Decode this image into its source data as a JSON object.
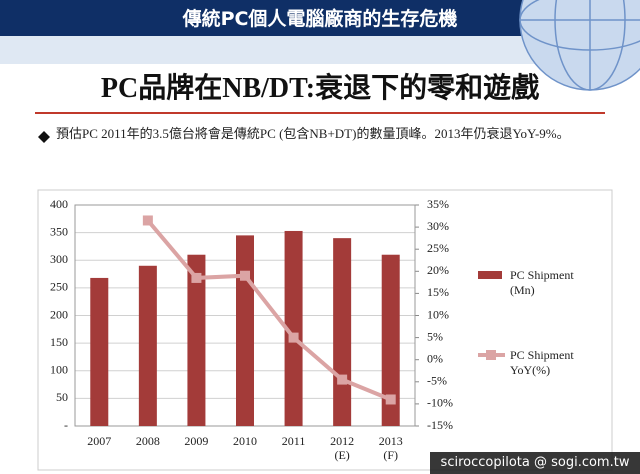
{
  "header": {
    "title": "傳統PC個人電腦廠商的生存危機"
  },
  "slide_title": "PC品牌在NB/DT:衰退下的零和遊戲",
  "bullet": "預估PC  2011年的3.5億台將會是傳統PC (包含NB+DT)的數量頂峰。2013年仍衰退YoY-9%。",
  "watermark": "sciroccopilota @ sogi.com.tw",
  "chart_data": {
    "type": "bar",
    "categories": [
      "2007",
      "2008",
      "2009",
      "2010",
      "2011",
      "2012\n(E)",
      "2013\n(F)"
    ],
    "series": [
      {
        "name": "PC Shipment\n(Mn)",
        "type": "bar",
        "color": "#a33b39",
        "values": [
          268,
          290,
          310,
          345,
          353,
          340,
          310
        ]
      },
      {
        "name": "PC Shipment\nYoY(%)",
        "type": "line",
        "axis": "y2",
        "color": "#dba4a4",
        "values": [
          null,
          31.5,
          18.5,
          19,
          5,
          -4.5,
          -9
        ]
      }
    ],
    "ylim": [
      0,
      400
    ],
    "yticks": [
      {
        "value": 0,
        "label": "-"
      },
      50,
      100,
      150,
      200,
      250,
      300,
      350,
      400
    ],
    "y2lim": [
      -15,
      35
    ],
    "y2ticks": [
      {
        "value": -15,
        "label": "-15%"
      },
      {
        "value": -10,
        "label": "-10%"
      },
      {
        "value": -5,
        "label": "-5%"
      },
      {
        "value": 0,
        "label": "0%"
      },
      {
        "value": 5,
        "label": "5%"
      },
      {
        "value": 10,
        "label": "10%"
      },
      {
        "value": 15,
        "label": "15%"
      },
      {
        "value": 20,
        "label": "20%"
      },
      {
        "value": 25,
        "label": "25%"
      },
      {
        "value": 30,
        "label": "30%"
      },
      {
        "value": 35,
        "label": "35%"
      }
    ],
    "grid": true,
    "legend": "right"
  }
}
